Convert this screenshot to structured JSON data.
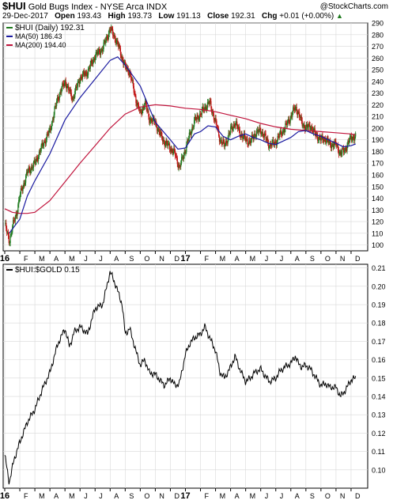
{
  "header": {
    "symbol": "$HUI",
    "name": "Gold Bugs Index - NYSE Arca INDX",
    "date": "29-Dec-2017",
    "open_label": "Open",
    "open": "193.43",
    "high_label": "High",
    "high": "193.73",
    "low_label": "Low",
    "low": "191.13",
    "close_label": "Close",
    "close": "192.31",
    "chg_label": "Chg",
    "chg": "+0.01 (+0.00%)",
    "chg_icon": "up-triangle-icon",
    "watermark": "@StockCharts.com"
  },
  "legend_top": {
    "price": "$HUI (Daily) 192.31",
    "ma50": "MA(50) 186.43",
    "ma200": "MA(200) 194.40"
  },
  "legend_bottom": {
    "ratio": "$HUI:$GOLD 0.15"
  },
  "colors": {
    "up": "#1e7a1e",
    "down": "#c01010",
    "ma50": "#1a1aa0",
    "ma200": "#c0143c",
    "ratio": "#000000",
    "grid": "#d8d8d8"
  },
  "x_axis": {
    "labels": [
      "16",
      "F",
      "M",
      "A",
      "M",
      "J",
      "J",
      "A",
      "S",
      "O",
      "N",
      "D",
      "17",
      "F",
      "M",
      "A",
      "M",
      "J",
      "J",
      "A",
      "S",
      "O",
      "N",
      "D"
    ],
    "bold": [
      "16",
      "17"
    ]
  },
  "chart_data": [
    {
      "type": "candlestick",
      "title": "$HUI (Daily) 192.31",
      "ylim": [
        95,
        290
      ],
      "yticks": [
        100,
        110,
        120,
        130,
        140,
        150,
        160,
        170,
        180,
        190,
        200,
        210,
        220,
        230,
        240,
        250,
        260,
        270,
        280,
        290
      ],
      "months": [
        "Jan 2016",
        "Feb 2016",
        "Mar 2016",
        "Apr 2016",
        "May 2016",
        "Jun 2016",
        "Jul 2016",
        "Aug 2016",
        "Sep 2016",
        "Oct 2016",
        "Nov 2016",
        "Dec 2016",
        "Jan 2017",
        "Feb 2017",
        "Mar 2017",
        "Apr 2017",
        "May 2017",
        "Jun 2017",
        "Jul 2017",
        "Aug 2017",
        "Sep 2017",
        "Oct 2017",
        "Nov 2017",
        "Dec 2017"
      ],
      "close_path": [
        [
          0,
          118
        ],
        [
          0.3,
          103
        ],
        [
          0.5,
          115
        ],
        [
          0.8,
          128
        ],
        [
          1.0,
          142
        ],
        [
          1.5,
          162
        ],
        [
          2.0,
          170
        ],
        [
          2.5,
          185
        ],
        [
          3.0,
          198
        ],
        [
          3.5,
          225
        ],
        [
          4.0,
          240
        ],
        [
          4.5,
          225
        ],
        [
          5.0,
          243
        ],
        [
          5.5,
          248
        ],
        [
          6.0,
          262
        ],
        [
          6.5,
          268
        ],
        [
          7.0,
          285
        ],
        [
          7.3,
          278
        ],
        [
          7.6,
          268
        ],
        [
          8.0,
          252
        ],
        [
          8.3,
          248
        ],
        [
          8.7,
          225
        ],
        [
          9.0,
          212
        ],
        [
          9.3,
          222
        ],
        [
          9.6,
          208
        ],
        [
          10.0,
          205
        ],
        [
          10.3,
          195
        ],
        [
          10.6,
          188
        ],
        [
          11.0,
          183
        ],
        [
          11.3,
          178
        ],
        [
          11.6,
          166
        ],
        [
          12.0,
          182
        ],
        [
          12.3,
          195
        ],
        [
          12.6,
          206
        ],
        [
          13.0,
          212
        ],
        [
          13.3,
          218
        ],
        [
          13.6,
          222
        ],
        [
          14.0,
          205
        ],
        [
          14.3,
          190
        ],
        [
          14.6,
          185
        ],
        [
          15.0,
          198
        ],
        [
          15.3,
          205
        ],
        [
          15.6,
          196
        ],
        [
          16.0,
          190
        ],
        [
          16.3,
          188
        ],
        [
          16.6,
          195
        ],
        [
          17.0,
          198
        ],
        [
          17.3,
          192
        ],
        [
          17.6,
          185
        ],
        [
          18.0,
          188
        ],
        [
          18.3,
          195
        ],
        [
          18.6,
          200
        ],
        [
          19.0,
          210
        ],
        [
          19.3,
          218
        ],
        [
          19.5,
          213
        ],
        [
          19.7,
          205
        ],
        [
          20.0,
          200
        ],
        [
          20.3,
          202
        ],
        [
          20.6,
          195
        ],
        [
          21.0,
          190
        ],
        [
          21.3,
          191
        ],
        [
          21.6,
          186
        ],
        [
          22.0,
          186
        ],
        [
          22.3,
          178
        ],
        [
          22.6,
          182
        ],
        [
          23.0,
          192
        ],
        [
          23.3,
          192.31
        ]
      ],
      "series": [
        {
          "name": "MA(50) 186.43",
          "path": [
            [
              0.3,
              110
            ],
            [
              1.0,
              122
            ],
            [
              1.5,
              142
            ],
            [
              2.0,
              155
            ],
            [
              3.0,
              178
            ],
            [
              4.0,
              207
            ],
            [
              5.0,
              226
            ],
            [
              6.0,
              242
            ],
            [
              7.0,
              258
            ],
            [
              7.5,
              261
            ],
            [
              8.0,
              254
            ],
            [
              9.0,
              236
            ],
            [
              10.0,
              205
            ],
            [
              11.0,
              190
            ],
            [
              11.5,
              182
            ],
            [
              12.0,
              183
            ],
            [
              12.6,
              195
            ],
            [
              13.0,
              197
            ],
            [
              13.5,
              202
            ],
            [
              14.0,
              201
            ],
            [
              14.5,
              193
            ],
            [
              15.0,
              190
            ],
            [
              15.5,
              193
            ],
            [
              16.0,
              195
            ],
            [
              16.5,
              192
            ],
            [
              17.0,
              190
            ],
            [
              17.5,
              187
            ],
            [
              18.0,
              186
            ],
            [
              18.5,
              189
            ],
            [
              19.0,
              192
            ],
            [
              19.5,
              197
            ],
            [
              20.0,
              198
            ],
            [
              20.5,
              195
            ],
            [
              21.0,
              193
            ],
            [
              21.5,
              190
            ],
            [
              22.0,
              187
            ],
            [
              22.5,
              184
            ],
            [
              23.0,
              185
            ],
            [
              23.3,
              186.43
            ]
          ]
        },
        {
          "name": "MA(200) 194.40",
          "path": [
            [
              0,
              131
            ],
            [
              0.5,
              128
            ],
            [
              1.0,
              127
            ],
            [
              1.5,
              127
            ],
            [
              2.0,
              128
            ],
            [
              3.0,
              138
            ],
            [
              4.0,
              154
            ],
            [
              5.0,
              170
            ],
            [
              6.0,
              185
            ],
            [
              7.0,
              200
            ],
            [
              8.0,
              212
            ],
            [
              9.0,
              218
            ],
            [
              10.0,
              220
            ],
            [
              11.0,
              219
            ],
            [
              12.0,
              217
            ],
            [
              13.0,
              216
            ],
            [
              14.0,
              214
            ],
            [
              15.0,
              211
            ],
            [
              16.0,
              208
            ],
            [
              17.0,
              204
            ],
            [
              18.0,
              201
            ],
            [
              19.0,
              199
            ],
            [
              20.0,
              198
            ],
            [
              21.0,
              197
            ],
            [
              22.0,
              196
            ],
            [
              23.0,
              195
            ],
            [
              23.3,
              194.4
            ]
          ]
        }
      ]
    },
    {
      "type": "line",
      "title": "$HUI:$GOLD 0.15",
      "ylim": [
        0.09,
        0.212
      ],
      "yticks": [
        0.1,
        0.11,
        0.12,
        0.13,
        0.14,
        0.15,
        0.16,
        0.17,
        0.18,
        0.19,
        0.2,
        0.21
      ],
      "series": [
        {
          "name": "$HUI:$GOLD 0.15",
          "path": [
            [
              0,
              0.108
            ],
            [
              0.3,
              0.093
            ],
            [
              0.6,
              0.105
            ],
            [
              1.0,
              0.115
            ],
            [
              1.5,
              0.126
            ],
            [
              2.0,
              0.133
            ],
            [
              2.5,
              0.144
            ],
            [
              3.0,
              0.153
            ],
            [
              3.5,
              0.168
            ],
            [
              4.0,
              0.177
            ],
            [
              4.3,
              0.167
            ],
            [
              4.6,
              0.175
            ],
            [
              5.0,
              0.178
            ],
            [
              5.5,
              0.174
            ],
            [
              6.0,
              0.188
            ],
            [
              6.5,
              0.19
            ],
            [
              7.0,
              0.208
            ],
            [
              7.4,
              0.2
            ],
            [
              7.8,
              0.19
            ],
            [
              8.0,
              0.174
            ],
            [
              8.3,
              0.177
            ],
            [
              8.7,
              0.165
            ],
            [
              9.0,
              0.157
            ],
            [
              9.3,
              0.16
            ],
            [
              9.6,
              0.153
            ],
            [
              10.0,
              0.152
            ],
            [
              10.3,
              0.149
            ],
            [
              10.6,
              0.146
            ],
            [
              11.0,
              0.15
            ],
            [
              11.3,
              0.146
            ],
            [
              11.6,
              0.147
            ],
            [
              12.0,
              0.163
            ],
            [
              12.3,
              0.169
            ],
            [
              12.6,
              0.172
            ],
            [
              13.0,
              0.174
            ],
            [
              13.3,
              0.178
            ],
            [
              13.6,
              0.172
            ],
            [
              14.0,
              0.165
            ],
            [
              14.3,
              0.153
            ],
            [
              14.6,
              0.15
            ],
            [
              15.0,
              0.156
            ],
            [
              15.3,
              0.162
            ],
            [
              15.6,
              0.155
            ],
            [
              16.0,
              0.148
            ],
            [
              16.3,
              0.15
            ],
            [
              16.6,
              0.153
            ],
            [
              17.0,
              0.155
            ],
            [
              17.3,
              0.151
            ],
            [
              17.6,
              0.148
            ],
            [
              18.0,
              0.15
            ],
            [
              18.3,
              0.154
            ],
            [
              18.6,
              0.156
            ],
            [
              19.0,
              0.158
            ],
            [
              19.3,
              0.162
            ],
            [
              19.5,
              0.158
            ],
            [
              19.7,
              0.156
            ],
            [
              20.0,
              0.157
            ],
            [
              20.3,
              0.155
            ],
            [
              20.6,
              0.151
            ],
            [
              21.0,
              0.146
            ],
            [
              21.3,
              0.147
            ],
            [
              21.6,
              0.145
            ],
            [
              22.0,
              0.145
            ],
            [
              22.3,
              0.14
            ],
            [
              22.6,
              0.143
            ],
            [
              23.0,
              0.149
            ],
            [
              23.3,
              0.15
            ]
          ]
        }
      ]
    }
  ]
}
